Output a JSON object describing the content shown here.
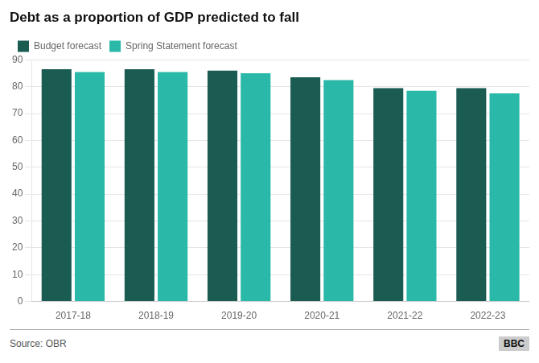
{
  "chart_data": {
    "type": "bar",
    "title": "Debt as a proportion of GDP predicted to fall",
    "categories": [
      "2017-18",
      "2018-19",
      "2019-20",
      "2020-21",
      "2021-22",
      "2022-23"
    ],
    "series": [
      {
        "name": "Budget forecast",
        "color": "#1a5c52",
        "values": [
          86.5,
          86.5,
          86.0,
          83.5,
          79.5,
          79.5
        ]
      },
      {
        "name": "Spring Statement forecast",
        "color": "#2ab8a8",
        "values": [
          85.5,
          85.5,
          85.0,
          82.5,
          78.5,
          77.5
        ]
      }
    ],
    "ylim": [
      0,
      90
    ],
    "yticks": [
      0,
      10,
      20,
      30,
      40,
      50,
      60,
      70,
      80,
      90
    ],
    "grid": true,
    "legend": "top",
    "annotations": [
      "Source: OBR",
      "BBC"
    ]
  }
}
